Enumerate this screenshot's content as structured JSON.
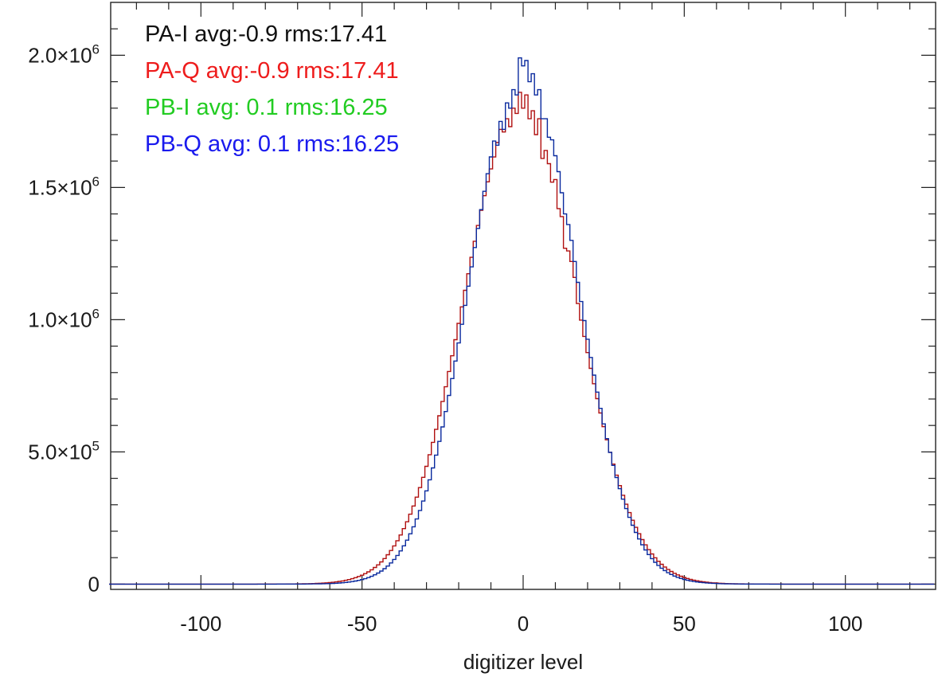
{
  "chart_data": {
    "type": "line",
    "xlabel": "digitizer level",
    "ylabel": "",
    "xlim": [
      -128,
      128
    ],
    "ylim": [
      -20000,
      2200000
    ],
    "x_ticks": [
      -100,
      -50,
      0,
      50,
      100
    ],
    "x_tick_labels": [
      "-100",
      "-50",
      "0",
      "50",
      "100"
    ],
    "x_minor_step": 10,
    "y_ticks": [
      0,
      500000,
      1000000,
      1500000,
      2000000
    ],
    "y_tick_labels": [
      {
        "mantissa": "0",
        "exp": ""
      },
      {
        "mantissa": "5.0×10",
        "exp": "5"
      },
      {
        "mantissa": "1.0×10",
        "exp": "6"
      },
      {
        "mantissa": "1.5×10",
        "exp": "6"
      },
      {
        "mantissa": "2.0×10",
        "exp": "6"
      }
    ],
    "y_minor_step": 100000,
    "grid": false,
    "legend_position": "top-left",
    "legend": [
      {
        "text": "PA-I avg:-0.9 rms:17.41",
        "color": "#111111"
      },
      {
        "text": "PA-Q avg:-0.9 rms:17.41",
        "color": "#ee1c1c"
      },
      {
        "text": "PB-I avg: 0.1 rms:16.25",
        "color": "#22cc22"
      },
      {
        "text": "PB-Q avg: 0.1 rms:16.25",
        "color": "#1a1aee"
      }
    ],
    "series": [
      {
        "name": "PA-I / PA-Q",
        "color": "#b01010",
        "mean": -0.9,
        "sigma": 17.41,
        "step_x": [
          -8,
          -7,
          -6,
          -5,
          -4,
          -3,
          -2,
          -1,
          0,
          1,
          2,
          3,
          4,
          5,
          6,
          7,
          8,
          9,
          10,
          11,
          12,
          13,
          14,
          15,
          16
        ],
        "step_y": [
          1670000,
          1720000,
          1710000,
          1760000,
          1730000,
          1800000,
          1780000,
          1860000,
          1800000,
          1850000,
          1760000,
          1790000,
          1700000,
          1760000,
          1610000,
          1640000,
          1590000,
          1520000,
          1530000,
          1420000,
          1390000,
          1270000,
          1260000,
          1220000,
          1160000
        ]
      },
      {
        "name": "PB-I / PB-Q",
        "color": "#0a2a9e",
        "mean": 0.1,
        "sigma": 16.25,
        "step_x": [
          -8,
          -7,
          -6,
          -5,
          -4,
          -3,
          -2,
          -1,
          0,
          1,
          2,
          3,
          4,
          5,
          6,
          7,
          8,
          9,
          10,
          11,
          12,
          13,
          14,
          15,
          16
        ],
        "step_y": [
          1660000,
          1750000,
          1720000,
          1820000,
          1800000,
          1870000,
          1850000,
          1990000,
          1960000,
          1980000,
          1900000,
          1930000,
          1850000,
          1870000,
          1760000,
          1760000,
          1690000,
          1680000,
          1620000,
          1560000,
          1480000,
          1400000,
          1360000,
          1300000,
          1220000
        ]
      }
    ]
  }
}
